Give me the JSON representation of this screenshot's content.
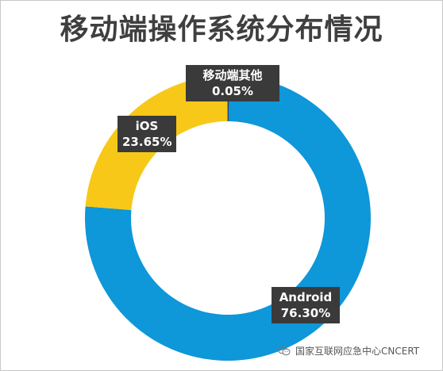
{
  "chart_data": {
    "type": "pie",
    "style": "donut",
    "title": "移动端操作系统分布情况",
    "categories": [
      "Android",
      "iOS",
      "移动端其他"
    ],
    "values": [
      76.3,
      23.65,
      0.05
    ],
    "value_labels": [
      "76.30%",
      "23.65%",
      "0.05%"
    ],
    "colors": [
      "#0e97d9",
      "#f7c817",
      "#2e3a6b"
    ],
    "legend": "none",
    "start_angle_deg": 0,
    "direction": "clockwise"
  },
  "watermark": {
    "text": "国家互联网应急中心CNCERT",
    "icon": "wechat-icon"
  }
}
